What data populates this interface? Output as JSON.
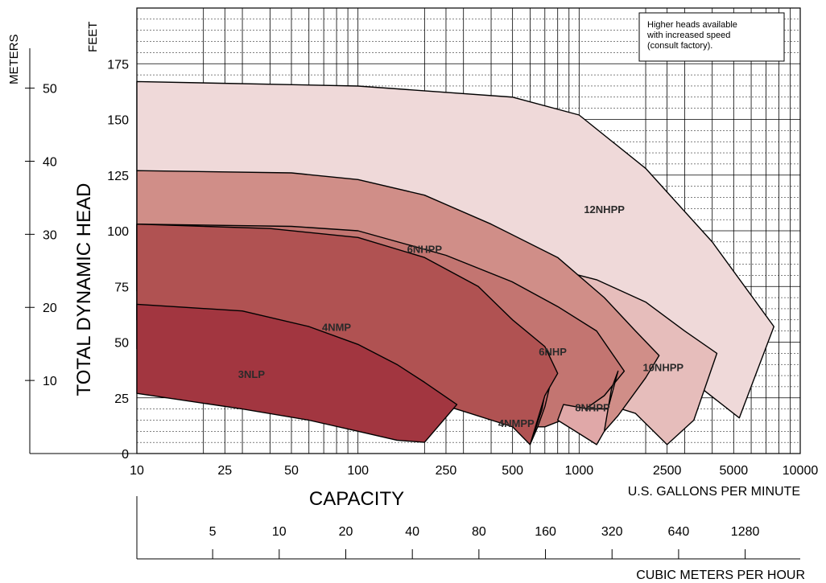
{
  "chart_data": {
    "type": "area",
    "title": "",
    "note": [
      "Higher heads available",
      "with increased speed",
      "(consult factory)."
    ],
    "xlabel": "CAPACITY",
    "xunit_primary": "U.S. GALLONS PER MINUTE",
    "xunit_secondary": "CUBIC METERS PER HOUR",
    "ylabel": "TOTAL DYNAMIC HEAD",
    "yunit_primary": "FEET",
    "yunit_secondary": "METERS",
    "x_scale": "log",
    "xlim": [
      10,
      10000
    ],
    "ylim": [
      0,
      200
    ],
    "x_ticks": [
      "10",
      "25",
      "50",
      "100",
      "250",
      "500",
      "1000",
      "2500",
      "5000",
      "10000"
    ],
    "y_ticks": [
      "0",
      "25",
      "50",
      "75",
      "100",
      "125",
      "150",
      "175"
    ],
    "meters_ticks": [
      "10",
      "20",
      "30",
      "40",
      "50"
    ],
    "cmh_ticks": [
      "5",
      "10",
      "20",
      "40",
      "80",
      "160",
      "320",
      "640",
      "1280"
    ],
    "grid": true,
    "regions": [
      {
        "name": "12NHPP",
        "color": "#efd9d9",
        "outline": [
          [
            10,
            167
          ],
          [
            100,
            165
          ],
          [
            500,
            160
          ],
          [
            1000,
            152
          ],
          [
            2000,
            128
          ],
          [
            4000,
            95
          ],
          [
            7600,
            57
          ],
          [
            5300,
            16
          ],
          [
            3200,
            33
          ],
          [
            2000,
            55
          ],
          [
            1200,
            72
          ],
          [
            700,
            84
          ],
          [
            400,
            88
          ],
          [
            200,
            96
          ],
          [
            100,
            104
          ],
          [
            50,
            113
          ],
          [
            25,
            121
          ],
          [
            10,
            127
          ]
        ]
      },
      {
        "name": "10NHPP",
        "color": "#e6bdbb",
        "outline": [
          [
            100,
            100
          ],
          [
            300,
            92
          ],
          [
            700,
            84
          ],
          [
            1200,
            78
          ],
          [
            2000,
            68
          ],
          [
            3000,
            55
          ],
          [
            4200,
            45
          ],
          [
            3300,
            15
          ],
          [
            2500,
            4
          ],
          [
            1800,
            18
          ],
          [
            1000,
            26
          ],
          [
            500,
            31
          ],
          [
            300,
            35
          ]
        ]
      },
      {
        "name": "6NHPP",
        "color": "#d08e88",
        "outline": [
          [
            10,
            127
          ],
          [
            50,
            126
          ],
          [
            100,
            123
          ],
          [
            200,
            116
          ],
          [
            400,
            103
          ],
          [
            800,
            88
          ],
          [
            1300,
            70
          ],
          [
            1800,
            55
          ],
          [
            2300,
            44
          ],
          [
            2000,
            34
          ],
          [
            1500,
            17
          ],
          [
            1300,
            10
          ],
          [
            1000,
            15
          ],
          [
            700,
            22
          ],
          [
            500,
            30
          ],
          [
            300,
            45
          ],
          [
            150,
            60
          ],
          [
            60,
            70
          ],
          [
            10,
            73
          ]
        ]
      },
      {
        "name": "6NHP",
        "color": "#c37571",
        "outline": [
          [
            10,
            103
          ],
          [
            50,
            102
          ],
          [
            100,
            100
          ],
          [
            250,
            89
          ],
          [
            500,
            77
          ],
          [
            800,
            66
          ],
          [
            1200,
            55
          ],
          [
            1600,
            37
          ],
          [
            1300,
            26
          ],
          [
            1000,
            18
          ],
          [
            700,
            12
          ],
          [
            600,
            12
          ],
          [
            650,
            20
          ],
          [
            500,
            30
          ],
          [
            300,
            45
          ],
          [
            100,
            55
          ],
          [
            10,
            60
          ]
        ]
      },
      {
        "name": "8NHPP",
        "color": "#e0a8a8",
        "outline": [
          [
            850,
            22
          ],
          [
            1100,
            20
          ],
          [
            1350,
            20
          ],
          [
            1500,
            37
          ],
          [
            1400,
            29
          ],
          [
            1300,
            10
          ],
          [
            1200,
            4
          ],
          [
            1000,
            9
          ],
          [
            800,
            15
          ]
        ]
      },
      {
        "name": "4NMPP",
        "color": "#c86a6d",
        "outline": [
          [
            640,
            12
          ],
          [
            680,
            20
          ],
          [
            700,
            27
          ],
          [
            750,
            35
          ],
          [
            740,
            31
          ],
          [
            700,
            21
          ],
          [
            650,
            12
          ],
          [
            600,
            4
          ]
        ]
      },
      {
        "name": "4NMP",
        "color": "#b05252",
        "outline": [
          [
            10,
            103
          ],
          [
            40,
            101
          ],
          [
            100,
            97
          ],
          [
            200,
            88
          ],
          [
            350,
            75
          ],
          [
            500,
            60
          ],
          [
            700,
            48
          ],
          [
            800,
            36
          ],
          [
            700,
            26
          ],
          [
            600,
            4
          ],
          [
            500,
            12
          ],
          [
            300,
            19
          ],
          [
            150,
            28
          ],
          [
            60,
            36
          ],
          [
            10,
            47
          ]
        ]
      },
      {
        "name": "3NLP",
        "color": "#a23640",
        "outline": [
          [
            10,
            67
          ],
          [
            30,
            64
          ],
          [
            60,
            57
          ],
          [
            100,
            49
          ],
          [
            150,
            40
          ],
          [
            200,
            32
          ],
          [
            280,
            22
          ],
          [
            200,
            5
          ],
          [
            150,
            6
          ],
          [
            100,
            10
          ],
          [
            60,
            15
          ],
          [
            30,
            20
          ],
          [
            10,
            27
          ]
        ]
      }
    ],
    "labels": [
      {
        "name": "12NHPP",
        "x": 1300,
        "y": 108
      },
      {
        "name": "6NHPP",
        "x": 200,
        "y": 90
      },
      {
        "name": "4NMP",
        "x": 80,
        "y": 55
      },
      {
        "name": "6NHP",
        "x": 760,
        "y": 44
      },
      {
        "name": "10NHPP",
        "x": 2400,
        "y": 37
      },
      {
        "name": "3NLP",
        "x": 33,
        "y": 34
      },
      {
        "name": "8NHPP",
        "x": 1150,
        "y": 19
      },
      {
        "name": "4NMPP",
        "x": 520,
        "y": 12
      }
    ]
  }
}
